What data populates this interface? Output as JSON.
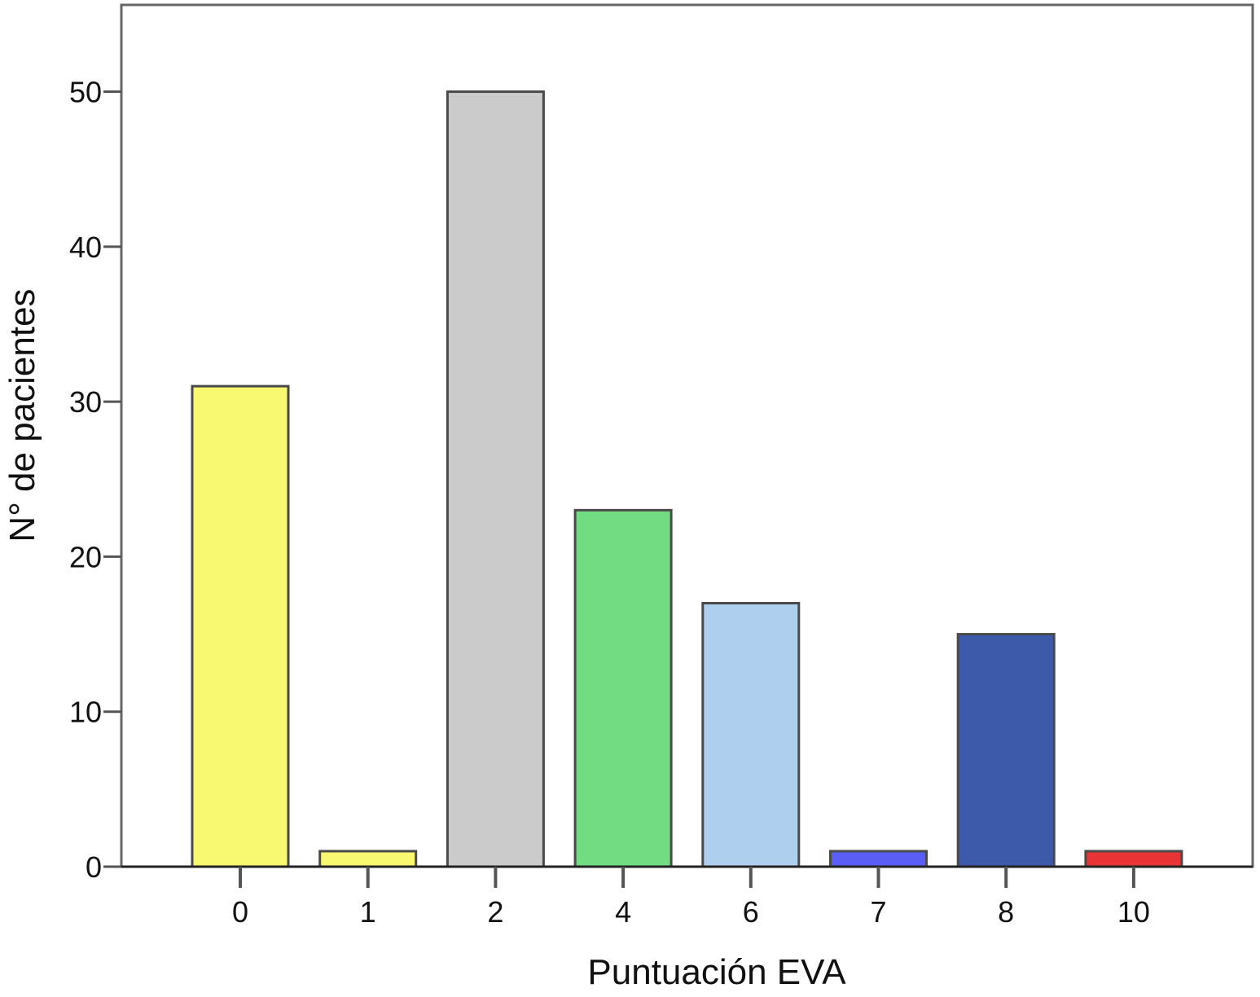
{
  "chart_data": {
    "type": "bar",
    "title": "",
    "xlabel": "Puntuación EVA",
    "ylabel": "N° de pacientes",
    "categories": [
      "0",
      "1",
      "2",
      "4",
      "6",
      "7",
      "8",
      "10"
    ],
    "values": [
      31,
      1,
      50,
      23,
      17,
      1,
      15,
      1
    ],
    "bar_colors": [
      "#f9f871",
      "#f9f871",
      "#cbcbcb",
      "#72dc82",
      "#aecfee",
      "#5a5df6",
      "#3c59aa",
      "#e83434"
    ],
    "ylim": [
      0,
      55.6
    ],
    "yticks": [
      0,
      10,
      20,
      30,
      40,
      50
    ],
    "grid": false,
    "legend": "none"
  }
}
